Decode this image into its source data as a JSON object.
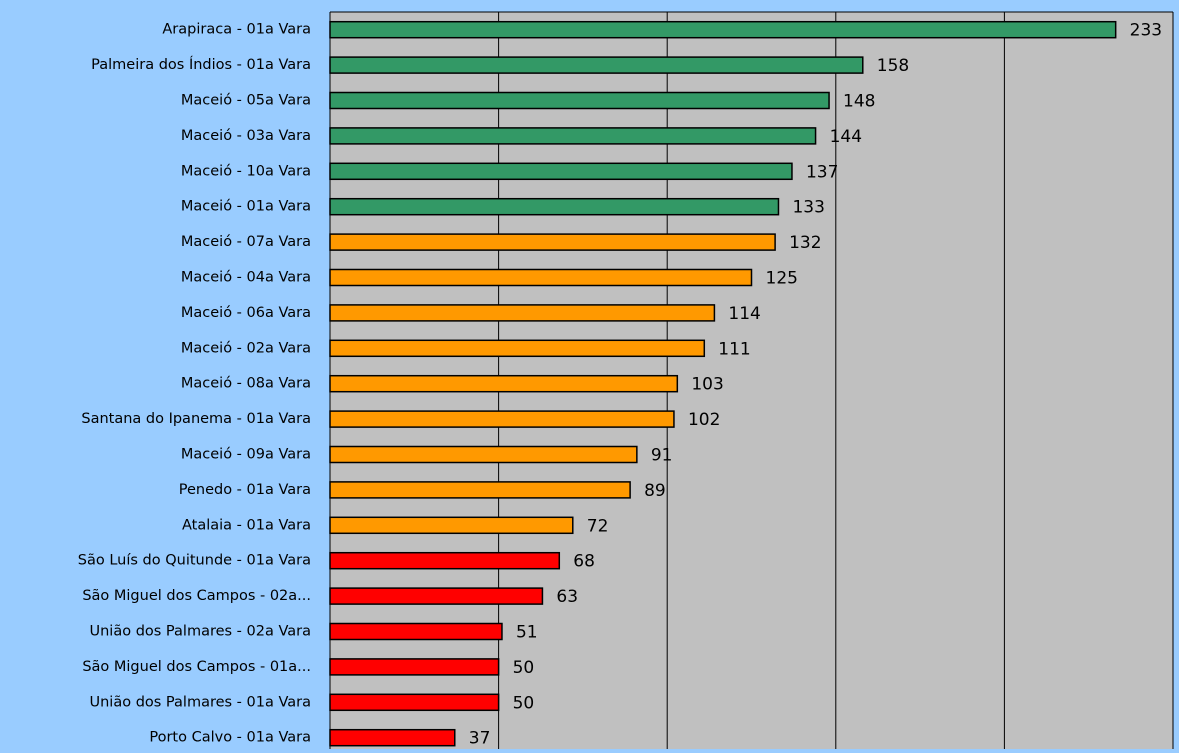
{
  "chart_data": {
    "type": "barh",
    "categories": [
      "Arapiraca - 01a Vara",
      "Palmeira dos Índios - 01a Vara",
      "Maceió - 05a Vara",
      "Maceió - 03a Vara",
      "Maceió - 10a Vara",
      "Maceió - 01a Vara",
      "Maceió - 07a Vara",
      "Maceió - 04a Vara",
      "Maceió - 06a Vara",
      "Maceió - 02a Vara",
      "Maceió - 08a Vara",
      "Santana do Ipanema - 01a Vara",
      "Maceió - 09a Vara",
      "Penedo - 01a Vara",
      "Atalaia - 01a Vara",
      "São Luís do Quitunde - 01a Vara",
      "São Miguel dos Campos - 02a...",
      "União dos Palmares - 02a Vara",
      "São Miguel dos Campos - 01a...",
      "União dos Palmares - 01a Vara",
      "Porto Calvo - 01a Vara"
    ],
    "values": [
      233,
      158,
      148,
      144,
      137,
      133,
      132,
      125,
      114,
      111,
      103,
      102,
      91,
      89,
      72,
      68,
      63,
      51,
      50,
      50,
      37
    ],
    "colors": [
      "#339966",
      "#339966",
      "#339966",
      "#339966",
      "#339966",
      "#339966",
      "#ff9900",
      "#ff9900",
      "#ff9900",
      "#ff9900",
      "#ff9900",
      "#ff9900",
      "#ff9900",
      "#ff9900",
      "#ff9900",
      "#ff0000",
      "#ff0000",
      "#ff0000",
      "#ff0000",
      "#ff0000",
      "#ff0000"
    ],
    "xlim": [
      0,
      250
    ],
    "xticks": [
      0,
      50,
      100,
      150,
      200,
      250
    ],
    "grid": true
  }
}
